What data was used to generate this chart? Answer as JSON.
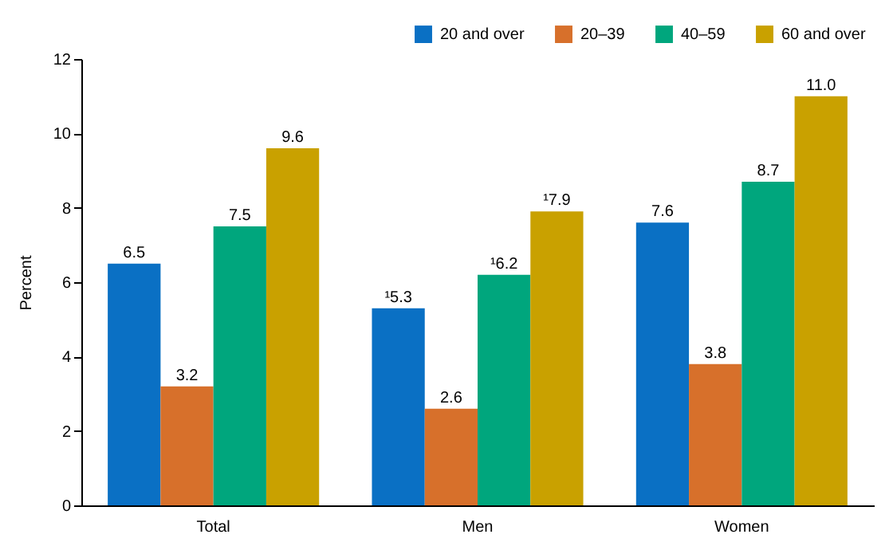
{
  "chart_data": {
    "type": "bar",
    "ylabel": "Percent",
    "categories": [
      "Total",
      "Men",
      "Women"
    ],
    "series": [
      {
        "name": "20 and over",
        "color": "#0a70c4",
        "values": [
          6.5,
          5.3,
          7.6
        ],
        "value_labels": [
          "6.5",
          "¹5.3",
          "7.6"
        ]
      },
      {
        "name": "20–39",
        "color": "#d7702b",
        "values": [
          3.2,
          2.6,
          3.8
        ],
        "value_labels": [
          "3.2",
          "2.6",
          "3.8"
        ]
      },
      {
        "name": "40–59",
        "color": "#00a67d",
        "values": [
          7.5,
          6.2,
          8.7
        ],
        "value_labels": [
          "7.5",
          "¹6.2",
          "8.7"
        ]
      },
      {
        "name": "60 and over",
        "color": "#c9a100",
        "values": [
          9.6,
          7.9,
          11.0
        ],
        "value_labels": [
          "9.6",
          "¹7.9",
          "11.0"
        ]
      }
    ],
    "ylim": [
      0,
      12
    ],
    "yticks": [
      0,
      2,
      4,
      6,
      8,
      10,
      12
    ],
    "legend": "top right"
  }
}
